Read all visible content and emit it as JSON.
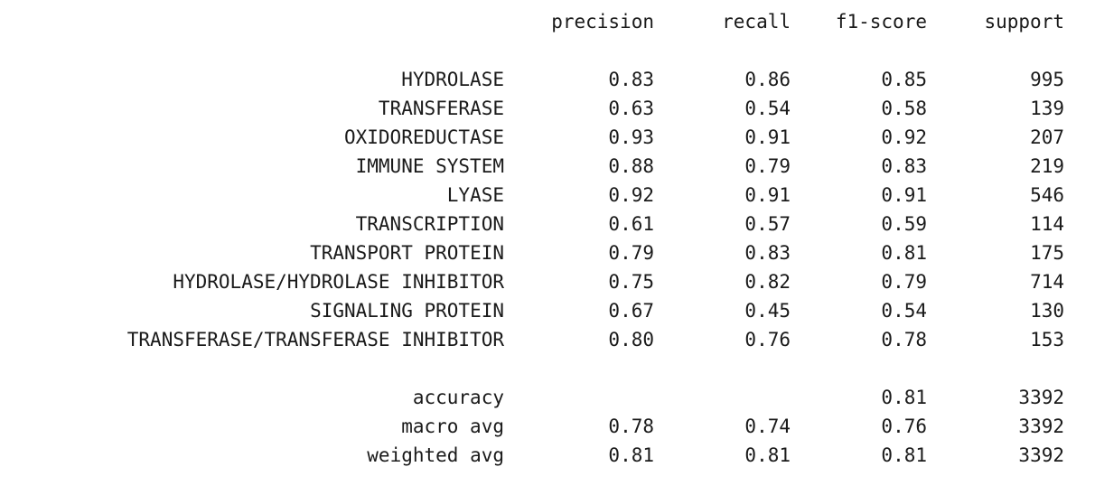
{
  "headers": {
    "precision": "precision",
    "recall": "recall",
    "f1": "f1-score",
    "support": "support"
  },
  "classes": [
    {
      "label": "HYDROLASE",
      "precision": "0.83",
      "recall": "0.86",
      "f1": "0.85",
      "support": "995"
    },
    {
      "label": "TRANSFERASE",
      "precision": "0.63",
      "recall": "0.54",
      "f1": "0.58",
      "support": "139"
    },
    {
      "label": "OXIDOREDUCTASE",
      "precision": "0.93",
      "recall": "0.91",
      "f1": "0.92",
      "support": "207"
    },
    {
      "label": "IMMUNE SYSTEM",
      "precision": "0.88",
      "recall": "0.79",
      "f1": "0.83",
      "support": "219"
    },
    {
      "label": "LYASE",
      "precision": "0.92",
      "recall": "0.91",
      "f1": "0.91",
      "support": "546"
    },
    {
      "label": "TRANSCRIPTION",
      "precision": "0.61",
      "recall": "0.57",
      "f1": "0.59",
      "support": "114"
    },
    {
      "label": "TRANSPORT PROTEIN",
      "precision": "0.79",
      "recall": "0.83",
      "f1": "0.81",
      "support": "175"
    },
    {
      "label": "HYDROLASE/HYDROLASE INHIBITOR",
      "precision": "0.75",
      "recall": "0.82",
      "f1": "0.79",
      "support": "714"
    },
    {
      "label": "SIGNALING PROTEIN",
      "precision": "0.67",
      "recall": "0.45",
      "f1": "0.54",
      "support": "130"
    },
    {
      "label": "TRANSFERASE/TRANSFERASE INHIBITOR",
      "precision": "0.80",
      "recall": "0.76",
      "f1": "0.78",
      "support": "153"
    }
  ],
  "summary": [
    {
      "label": "accuracy",
      "precision": "",
      "recall": "",
      "f1": "0.81",
      "support": "3392"
    },
    {
      "label": "macro avg",
      "precision": "0.78",
      "recall": "0.74",
      "f1": "0.76",
      "support": "3392"
    },
    {
      "label": "weighted avg",
      "precision": "0.81",
      "recall": "0.81",
      "f1": "0.81",
      "support": "3392"
    }
  ]
}
